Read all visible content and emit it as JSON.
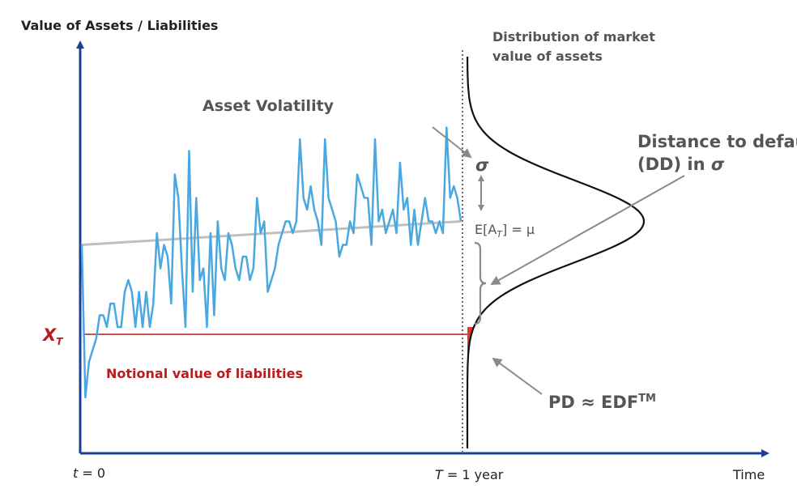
{
  "axes": {
    "y_label": "Value of Assets / Liabilities",
    "x_label": "Time",
    "t0": {
      "var": "t",
      "rest": " = 0"
    },
    "tT": {
      "var": "T",
      "rest": " = 1 year"
    }
  },
  "labels": {
    "distribution_line1": "Distribution of market",
    "distribution_line2": "value of assets",
    "asset_volatility": "Asset Volatility",
    "sigma": "σ",
    "expectation": {
      "prefix": "E[A",
      "sub": "T",
      "suffix": "] = μ"
    },
    "dd_line1": "Distance to default",
    "dd_line2": "(DD) in ",
    "dd_sigma": "σ",
    "xt": {
      "var": "X",
      "sub": "T"
    },
    "notional": "Notional value of liabilities",
    "pd": "PD ≈ EDF",
    "pd_tm": "TM"
  },
  "colors": {
    "axis": "#1a3f95",
    "asset_path": "#4aa8e0",
    "trend": "#c0c0c0",
    "liability": "#b81c1c",
    "pd_area": "#e03a2f",
    "annotation": "#777777",
    "distribution": "#111111"
  },
  "asset_path": [
    70,
    57,
    60,
    61,
    62,
    64,
    64,
    63,
    65,
    65,
    63,
    63,
    66,
    67,
    66,
    63,
    66,
    63,
    66,
    63,
    65,
    71,
    68,
    70,
    69,
    65,
    76,
    74,
    68,
    63,
    78,
    66,
    74,
    67,
    68,
    63,
    71,
    64,
    72,
    68,
    67,
    71,
    70,
    68,
    67,
    69,
    69,
    67,
    68,
    74,
    71,
    72,
    66,
    67,
    68,
    70,
    71,
    72,
    72,
    71,
    72,
    79,
    74,
    73,
    75,
    73,
    72,
    70,
    79,
    74,
    73,
    72,
    69,
    70,
    70,
    72,
    71,
    76,
    75,
    74,
    74,
    70,
    79,
    72,
    73,
    71,
    72,
    73,
    71,
    77,
    73,
    74,
    70,
    73,
    70,
    72,
    74,
    72,
    72,
    71,
    72,
    71,
    80,
    74,
    75,
    74,
    72
  ],
  "trend": {
    "start": 70,
    "end": 72
  },
  "distribution": {
    "mean": 72,
    "sd": 3.5
  },
  "liability_value": 63,
  "y_range": [
    55,
    85
  ]
}
